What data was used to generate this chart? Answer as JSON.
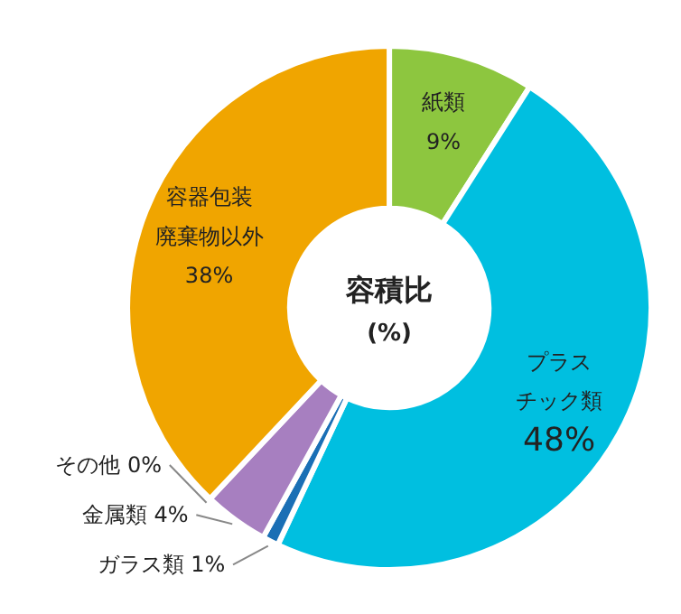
{
  "chart_data": {
    "type": "donut",
    "title": "容積比",
    "subtitle": "(%)",
    "categories": [
      "紙類",
      "プラスチック類",
      "ガラス類",
      "金属類",
      "その他",
      "容器包装廃棄物以外"
    ],
    "values": [
      9,
      48,
      1,
      4,
      0,
      38
    ],
    "value_labels": [
      "9%",
      "48%",
      "1%",
      "4%",
      "0%",
      "38%"
    ],
    "colors": [
      "#8dc63f",
      "#00bfe0",
      "#1a6fb5",
      "#a77fc0",
      "#7f7f7f",
      "#f0a500"
    ]
  }
}
